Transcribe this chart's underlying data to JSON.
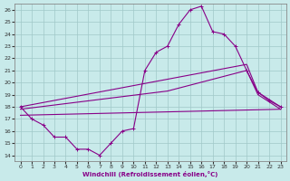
{
  "xlabel": "Windchill (Refroidissement éolien,°C)",
  "xlim": [
    -0.5,
    23.5
  ],
  "ylim": [
    13.5,
    26.5
  ],
  "xticks": [
    0,
    1,
    2,
    3,
    4,
    5,
    6,
    7,
    8,
    9,
    10,
    11,
    12,
    13,
    14,
    15,
    16,
    17,
    18,
    19,
    20,
    21,
    22,
    23
  ],
  "yticks": [
    14,
    15,
    16,
    17,
    18,
    19,
    20,
    21,
    22,
    23,
    24,
    25,
    26
  ],
  "bg_color": "#c8eaea",
  "line_color": "#880088",
  "grid_color": "#a0c8c8",
  "line1": {
    "x": [
      0,
      1,
      2,
      3,
      4,
      5,
      6,
      7,
      8,
      9,
      10,
      11,
      12,
      13,
      14,
      15,
      16,
      17,
      18,
      19,
      20,
      21,
      22,
      23
    ],
    "y": [
      18.0,
      17.0,
      16.5,
      15.5,
      15.5,
      14.5,
      14.5,
      14.0,
      15.0,
      16.0,
      16.2,
      21.0,
      22.5,
      23.0,
      24.8,
      26.0,
      26.3,
      24.2,
      24.0,
      23.0,
      21.0,
      19.2,
      18.5,
      18.0
    ]
  },
  "line2": {
    "x": [
      0,
      20,
      21,
      23
    ],
    "y": [
      18.0,
      21.5,
      19.2,
      18.0
    ]
  },
  "line3": {
    "x": [
      0,
      13,
      20,
      21,
      23
    ],
    "y": [
      17.8,
      19.3,
      21.0,
      19.0,
      17.8
    ]
  },
  "line4": {
    "x": [
      0,
      23
    ],
    "y": [
      17.3,
      17.8
    ]
  }
}
